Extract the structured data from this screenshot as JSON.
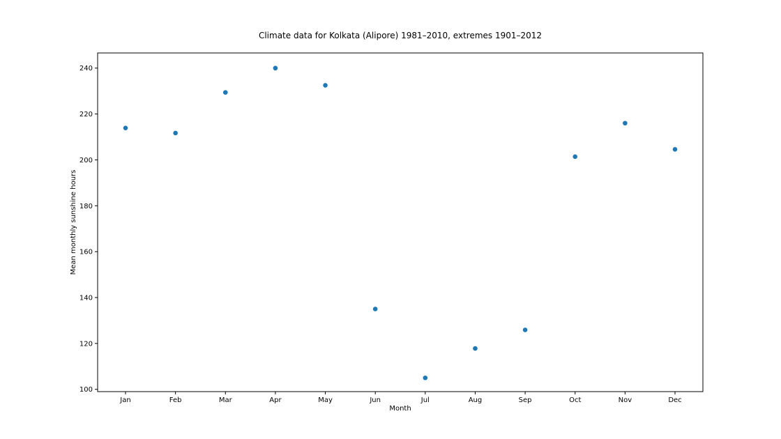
{
  "chart_data": {
    "type": "scatter",
    "title": "Climate data for Kolkata (Alipore) 1981–2010, extremes 1901–2012",
    "xlabel": "Month",
    "ylabel": "Mean monthly sunshine hours",
    "categories": [
      "Jan",
      "Feb",
      "Mar",
      "Apr",
      "May",
      "Jun",
      "Jul",
      "Aug",
      "Sep",
      "Oct",
      "Nov",
      "Dec"
    ],
    "values": [
      213.9,
      211.7,
      229.4,
      240.0,
      232.5,
      135.0,
      105.0,
      117.8,
      125.9,
      201.4,
      216.0,
      204.6
    ],
    "ylim": [
      99,
      246.6
    ],
    "yticks": [
      100,
      120,
      140,
      160,
      180,
      200,
      220,
      240
    ],
    "grid": false,
    "marker_color": "#1f77b4"
  }
}
